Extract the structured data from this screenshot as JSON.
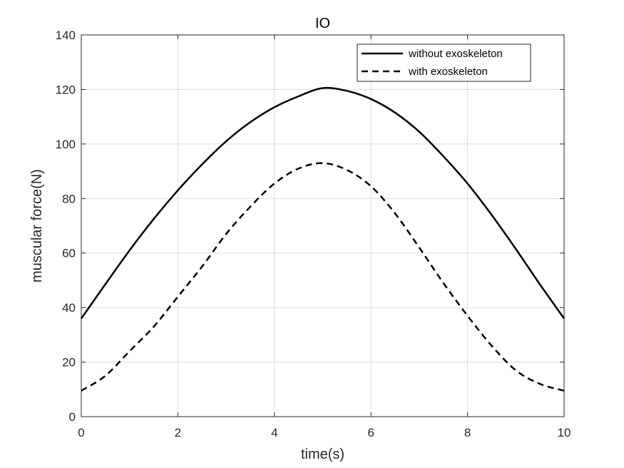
{
  "chart_data": {
    "type": "line",
    "title": "IO",
    "xlabel": "time(s)",
    "ylabel": "muscular force(N)",
    "xlim": [
      0,
      10
    ],
    "ylim": [
      0,
      140
    ],
    "xticks": [
      0,
      2,
      4,
      6,
      8,
      10
    ],
    "yticks": [
      0,
      20,
      40,
      60,
      80,
      100,
      120,
      140
    ],
    "grid": true,
    "legend_position": "top-right",
    "series": [
      {
        "name": "without exoskeleton",
        "style": "solid",
        "color": "#000000",
        "x": [
          0,
          0.5,
          1,
          1.5,
          2,
          2.5,
          3,
          3.5,
          4,
          4.5,
          5,
          5.5,
          6,
          6.5,
          7,
          7.5,
          8,
          8.5,
          9,
          9.5,
          10
        ],
        "y": [
          36,
          48.6,
          61,
          72.5,
          83,
          92.5,
          101,
          108,
          113.5,
          117.5,
          120.5,
          119.5,
          116.5,
          111.5,
          104.5,
          95.5,
          85.5,
          74,
          61.5,
          48.5,
          36
        ]
      },
      {
        "name": "with exoskeleton",
        "style": "dashed",
        "color": "#000000",
        "x": [
          0,
          0.5,
          1,
          1.5,
          2,
          2.5,
          3,
          3.5,
          4,
          4.5,
          5,
          5.5,
          6,
          6.5,
          7,
          7.5,
          8,
          8.5,
          9,
          9.5,
          10
        ],
        "y": [
          9.5,
          15,
          24,
          33,
          44,
          55,
          67,
          77,
          85.5,
          91,
          93,
          90.5,
          84.5,
          74.5,
          62,
          49,
          37,
          26,
          17,
          12,
          9.5
        ]
      }
    ]
  }
}
